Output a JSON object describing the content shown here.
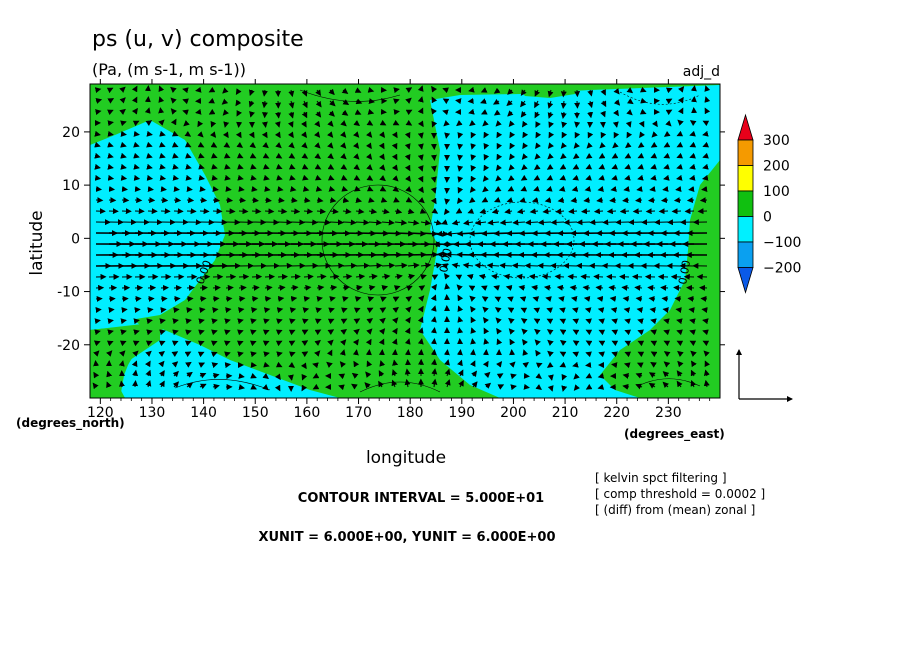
{
  "chart_data": {
    "type": "heatmap",
    "title": "ps (u, v) composite",
    "subtitle": "(Pa, (m s-1, m s-1))",
    "corner_label": "adj_d",
    "xlabel": "longitude",
    "ylabel": "latitude",
    "x_unit_label": "(degrees_east)",
    "y_unit_label": "(degrees_north)",
    "xlim": [
      118,
      240
    ],
    "ylim": [
      -30,
      29
    ],
    "x_ticks": [
      120,
      130,
      140,
      150,
      160,
      170,
      180,
      190,
      200,
      210,
      220,
      230
    ],
    "y_ticks": [
      -20,
      -10,
      0,
      10,
      20
    ],
    "colorbar": {
      "labels": [
        "300",
        "200",
        "100",
        "0",
        "−100",
        "−200"
      ],
      "colors": [
        "#e8001a",
        "#f59a00",
        "#ffff00",
        "#10c010",
        "#00f0ff",
        "#0aa0f0",
        "#0a5ae8"
      ]
    },
    "field_colors": {
      "positive": "#22cc22",
      "negative": "#00eeff"
    },
    "contour_labels": [
      "0.00",
      "0.00",
      "0.00"
    ],
    "vector_key": {
      "xunit": "6.000E+00",
      "yunit": "6.000E+00"
    },
    "notes": [
      "[ kelvin spct filtering ]",
      "[ comp threshold = 0.0002 ]",
      "[ (diff) from (mean) zonal ]"
    ],
    "contour_interval_text": "CONTOUR INTERVAL = 5.000E+01",
    "units_text": "XUNIT = 6.000E+00, YUNIT = 6.000E+00"
  }
}
